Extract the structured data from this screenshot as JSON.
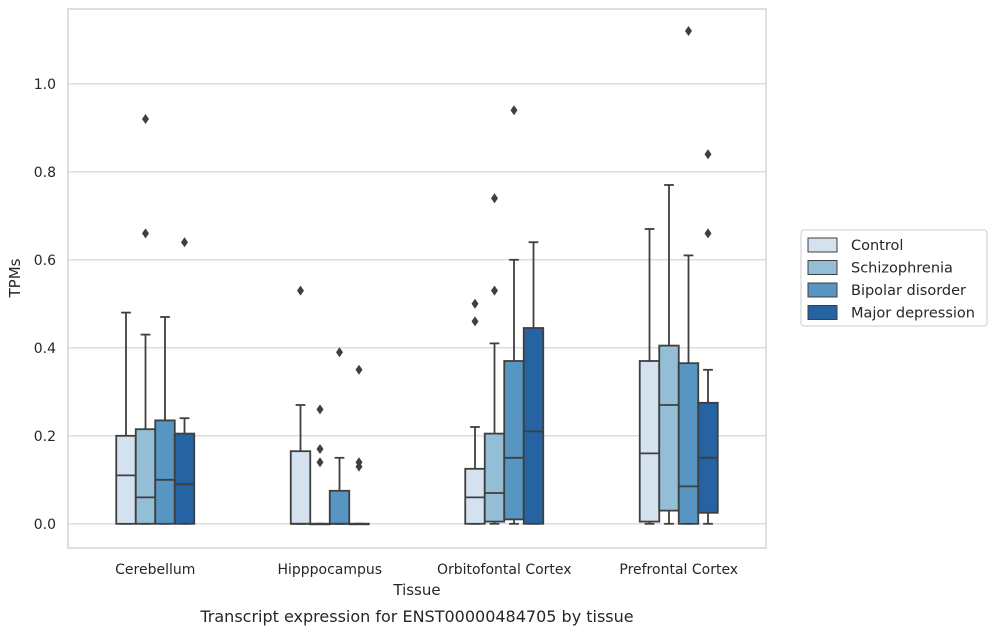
{
  "chart_data": {
    "type": "boxplot",
    "caption": "Transcript expression for ENST00000484705 by tissue",
    "xlabel": "Tissue",
    "ylabel": "TPMs",
    "ylim": [
      -0.055,
      1.17
    ],
    "yticks": [
      0.0,
      0.2,
      0.4,
      0.6,
      0.8,
      1.0
    ],
    "ytick_labels": [
      "0.0",
      "0.2",
      "0.4",
      "0.6",
      "0.8",
      "1.0"
    ],
    "grid": "horizontal",
    "legend_position": "right",
    "categories": [
      "Cerebellum",
      "Hipppocampus",
      "Orbitofontal Cortex",
      "Prefrontal Cortex"
    ],
    "series": [
      {
        "name": "Control",
        "color": "#d4e2f0",
        "boxes": [
          {
            "whislo": 0.0,
            "q1": 0.0,
            "med": 0.11,
            "q3": 0.2,
            "whishi": 0.48,
            "fliers": []
          },
          {
            "whislo": 0.0,
            "q1": 0.0,
            "med": 0.0,
            "q3": 0.165,
            "whishi": 0.27,
            "fliers": [
              0.53
            ]
          },
          {
            "whislo": 0.0,
            "q1": 0.0,
            "med": 0.06,
            "q3": 0.125,
            "whishi": 0.22,
            "fliers": [
              0.46,
              0.5
            ]
          },
          {
            "whislo": 0.0,
            "q1": 0.005,
            "med": 0.16,
            "q3": 0.37,
            "whishi": 0.67,
            "fliers": []
          }
        ]
      },
      {
        "name": "Schizophrenia",
        "color": "#94bdd6",
        "boxes": [
          {
            "whislo": 0.0,
            "q1": 0.0,
            "med": 0.06,
            "q3": 0.215,
            "whishi": 0.43,
            "fliers": [
              0.66,
              0.92
            ]
          },
          {
            "whislo": 0.0,
            "q1": 0.0,
            "med": 0.0,
            "q3": 0.0,
            "whishi": 0.0,
            "fliers": [
              0.14,
              0.17,
              0.26
            ]
          },
          {
            "whislo": 0.0,
            "q1": 0.005,
            "med": 0.07,
            "q3": 0.205,
            "whishi": 0.41,
            "fliers": [
              0.53,
              0.74
            ]
          },
          {
            "whislo": 0.0,
            "q1": 0.03,
            "med": 0.27,
            "q3": 0.405,
            "whishi": 0.77,
            "fliers": []
          }
        ]
      },
      {
        "name": "Bipolar disorder",
        "color": "#5796c3",
        "boxes": [
          {
            "whislo": 0.0,
            "q1": 0.0,
            "med": 0.1,
            "q3": 0.235,
            "whishi": 0.47,
            "fliers": []
          },
          {
            "whislo": 0.0,
            "q1": 0.0,
            "med": 0.0,
            "q3": 0.075,
            "whishi": 0.15,
            "fliers": [
              0.39
            ]
          },
          {
            "whislo": 0.0,
            "q1": 0.01,
            "med": 0.15,
            "q3": 0.37,
            "whishi": 0.6,
            "fliers": [
              0.94
            ]
          },
          {
            "whislo": 0.0,
            "q1": 0.0,
            "med": 0.085,
            "q3": 0.365,
            "whishi": 0.61,
            "fliers": [
              1.12
            ]
          }
        ]
      },
      {
        "name": "Major depression",
        "color": "#2563a3",
        "boxes": [
          {
            "whislo": 0.0,
            "q1": 0.0,
            "med": 0.09,
            "q3": 0.205,
            "whishi": 0.24,
            "fliers": [
              0.64
            ]
          },
          {
            "whislo": 0.0,
            "q1": 0.0,
            "med": 0.0,
            "q3": 0.0,
            "whishi": 0.0,
            "fliers": [
              0.13,
              0.14,
              0.35
            ]
          },
          {
            "whislo": 0.0,
            "q1": 0.0,
            "med": 0.21,
            "q3": 0.445,
            "whishi": 0.64,
            "fliers": []
          },
          {
            "whislo": 0.0,
            "q1": 0.025,
            "med": 0.15,
            "q3": 0.275,
            "whishi": 0.35,
            "fliers": [
              0.66,
              0.84
            ]
          }
        ]
      }
    ]
  }
}
